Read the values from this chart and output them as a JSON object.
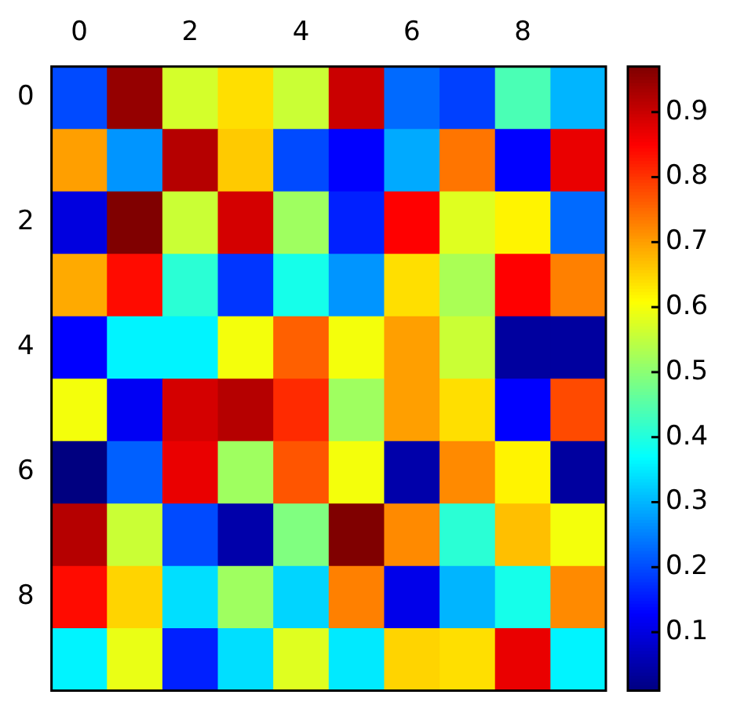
{
  "chart_data": {
    "type": "heatmap",
    "categories": [
      "0",
      null,
      "2",
      null,
      "4",
      null,
      "6",
      null,
      "8",
      null
    ],
    "y_categories": [
      "0",
      null,
      "2",
      null,
      "4",
      null,
      "6",
      null,
      "8",
      null
    ],
    "cells": [
      [
        0.2,
        0.95,
        0.57,
        0.64,
        0.56,
        0.9,
        0.23,
        0.19,
        0.44,
        0.3
      ],
      [
        0.7,
        0.27,
        0.92,
        0.66,
        0.2,
        0.13,
        0.29,
        0.74,
        0.13,
        0.87
      ],
      [
        0.1,
        0.97,
        0.56,
        0.89,
        0.52,
        0.16,
        0.85,
        0.58,
        0.62,
        0.23
      ],
      [
        0.69,
        0.84,
        0.41,
        0.18,
        0.39,
        0.27,
        0.64,
        0.53,
        0.85,
        0.73
      ],
      [
        0.13,
        0.36,
        0.36,
        0.6,
        0.76,
        0.6,
        0.7,
        0.56,
        0.04,
        0.04
      ],
      [
        0.6,
        0.12,
        0.89,
        0.92,
        0.81,
        0.52,
        0.7,
        0.64,
        0.13,
        0.78
      ],
      [
        0.01,
        0.22,
        0.87,
        0.52,
        0.77,
        0.6,
        0.05,
        0.72,
        0.62,
        0.04
      ],
      [
        0.92,
        0.56,
        0.2,
        0.05,
        0.49,
        0.97,
        0.72,
        0.41,
        0.67,
        0.6
      ],
      [
        0.84,
        0.65,
        0.34,
        0.52,
        0.33,
        0.73,
        0.11,
        0.3,
        0.39,
        0.72
      ],
      [
        0.36,
        0.59,
        0.16,
        0.34,
        0.58,
        0.35,
        0.65,
        0.64,
        0.87,
        0.36
      ]
    ],
    "clim": [
      0.01,
      0.97
    ],
    "cticks": [
      0.1,
      0.2,
      0.3,
      0.4,
      0.5,
      0.6,
      0.7,
      0.8,
      0.9
    ]
  }
}
